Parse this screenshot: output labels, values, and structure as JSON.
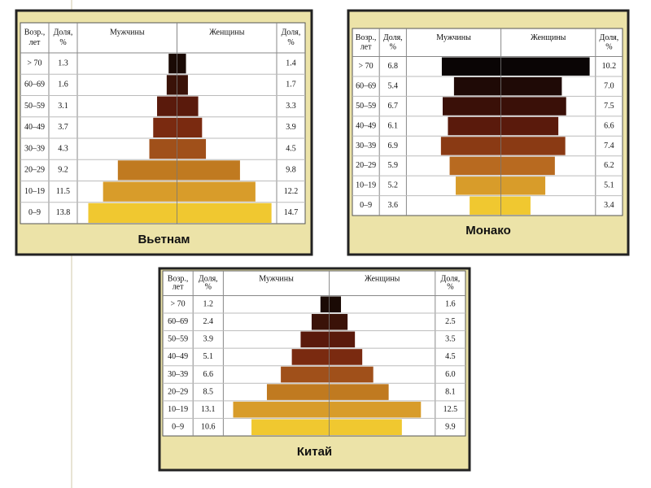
{
  "chart_data": [
    {
      "type": "pyramid",
      "title": "Вьетнам",
      "age_header": [
        "Возр.,",
        "лет"
      ],
      "share_header": [
        "Доля,",
        "%"
      ],
      "categories": [
        "> 70",
        "60–69",
        "50–59",
        "40–49",
        "30–39",
        "20–29",
        "10–19",
        "0–9"
      ],
      "series": [
        {
          "name": "Мужчины",
          "values": [
            1.3,
            1.6,
            3.1,
            3.7,
            4.3,
            9.2,
            11.5,
            13.8
          ]
        },
        {
          "name": "Женщины",
          "values": [
            1.4,
            1.7,
            3.3,
            3.9,
            4.5,
            9.8,
            12.2,
            14.7
          ]
        }
      ],
      "colors": [
        "#1a0a05",
        "#3a1208",
        "#5a1a0c",
        "#7a2a10",
        "#a0501a",
        "#c07a20",
        "#d89c2a",
        "#f0c830"
      ],
      "xlim": [
        0,
        15
      ]
    },
    {
      "type": "pyramid",
      "title": "Монако",
      "age_header": [
        "Возр.,",
        "лет"
      ],
      "share_header": [
        "Доля,",
        "%"
      ],
      "categories": [
        "> 70",
        "60–69",
        "50–59",
        "40–49",
        "30–39",
        "20–29",
        "10–19",
        "0–9"
      ],
      "series": [
        {
          "name": "Мужчины",
          "values": [
            6.8,
            5.4,
            6.7,
            6.1,
            6.9,
            5.9,
            5.2,
            3.6
          ]
        },
        {
          "name": "Женщины",
          "values": [
            10.2,
            7.0,
            7.5,
            6.6,
            7.4,
            6.2,
            5.1,
            3.4
          ],
          "value_labels": [
            "10.2",
            "7.0",
            "7.5",
            "6.6",
            "7.4",
            "6.2",
            "5.1",
            "3.4"
          ]
        }
      ],
      "colors": [
        "#0a0505",
        "#1f0a06",
        "#3a1008",
        "#5a1a0c",
        "#8a3a14",
        "#b86a20",
        "#d89c2a",
        "#f0c830"
      ],
      "xlim": [
        0,
        10.5
      ]
    },
    {
      "type": "pyramid",
      "title": "Китай",
      "age_header": [
        "Возр.,",
        "лет"
      ],
      "share_header": [
        "Доля,",
        "%"
      ],
      "categories": [
        "> 70",
        "60–69",
        "50–59",
        "40–49",
        "30–39",
        "20–29",
        "10–19",
        "0–9"
      ],
      "series": [
        {
          "name": "Мужчины",
          "values": [
            1.2,
            2.4,
            3.9,
            5.1,
            6.6,
            8.5,
            13.1,
            10.6
          ]
        },
        {
          "name": "Женщины",
          "values": [
            1.6,
            2.5,
            3.5,
            4.5,
            6.0,
            8.1,
            12.5,
            9.9
          ],
          "value_labels": [
            "1.6",
            "2.5",
            "3.5",
            "4.5",
            "6.0",
            "8.1",
            "12.5",
            "9.9"
          ]
        }
      ],
      "colors": [
        "#1a0a05",
        "#3a1208",
        "#5a1a0c",
        "#7a2a10",
        "#a0501a",
        "#c07a20",
        "#d89c2a",
        "#f0c830"
      ],
      "xlim": [
        0,
        14
      ]
    }
  ]
}
